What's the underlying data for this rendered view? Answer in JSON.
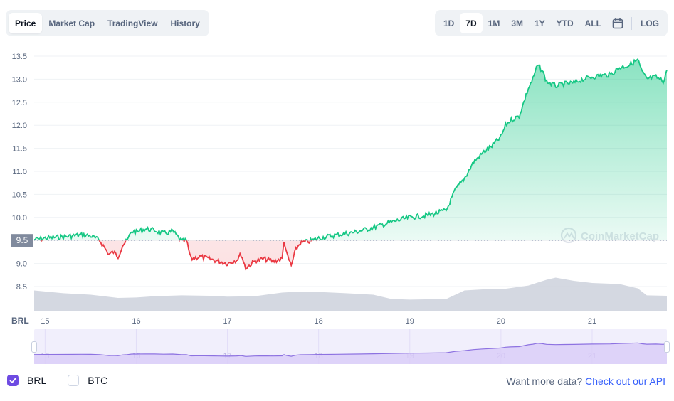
{
  "tabs": [
    {
      "label": "Price",
      "active": true
    },
    {
      "label": "Market Cap",
      "active": false
    },
    {
      "label": "TradingView",
      "active": false
    },
    {
      "label": "History",
      "active": false
    }
  ],
  "ranges": [
    {
      "label": "1D",
      "active": false
    },
    {
      "label": "7D",
      "active": true
    },
    {
      "label": "1M",
      "active": false
    },
    {
      "label": "3M",
      "active": false
    },
    {
      "label": "1Y",
      "active": false
    },
    {
      "label": "YTD",
      "active": false
    },
    {
      "label": "ALL",
      "active": false
    }
  ],
  "log_label": "LOG",
  "currency_label": "BRL",
  "current_price_label": "9.5",
  "watermark": "CoinMarketCap",
  "colors": {
    "up": "#16c784",
    "down": "#ea3943",
    "volume": "#ccd1dc",
    "navigator": "#8d72e1",
    "accent": "#6e4be2",
    "link": "#3861fb"
  },
  "chart_data": {
    "type": "line",
    "currency": "BRL",
    "baseline": 9.5,
    "ylim": [
      8.0,
      13.6
    ],
    "y_ticks": [
      "13.5",
      "13.0",
      "12.5",
      "12.0",
      "11.5",
      "11.0",
      "10.5",
      "10.0",
      "9.5",
      "9.0",
      "8.5"
    ],
    "x_ticks": [
      "15",
      "16",
      "17",
      "18",
      "19",
      "20",
      "21"
    ],
    "price": {
      "x": [
        14.88,
        15.0,
        15.2,
        15.4,
        15.5,
        15.6,
        15.7,
        15.75,
        15.8,
        15.85,
        15.9,
        15.95,
        16.0,
        16.1,
        16.2,
        16.3,
        16.4,
        16.5,
        16.55,
        16.6,
        16.7,
        16.8,
        16.9,
        17.0,
        17.1,
        17.15,
        17.2,
        17.3,
        17.4,
        17.5,
        17.6,
        17.62,
        17.65,
        17.7,
        17.75,
        17.8,
        17.9,
        18.0,
        18.2,
        18.4,
        18.6,
        18.8,
        19.0,
        19.2,
        19.4,
        19.5,
        19.6,
        19.7,
        19.8,
        19.9,
        20.0,
        20.05,
        20.1,
        20.2,
        20.3,
        20.35,
        20.4,
        20.45,
        20.5,
        20.6,
        20.7,
        20.8,
        20.9,
        21.0,
        21.1,
        21.2,
        21.3,
        21.4,
        21.5,
        21.55,
        21.6,
        21.7,
        21.78,
        21.82
      ],
      "y": [
        9.52,
        9.55,
        9.58,
        9.62,
        9.6,
        9.5,
        9.2,
        9.25,
        9.15,
        9.4,
        9.5,
        9.7,
        9.68,
        9.75,
        9.72,
        9.65,
        9.7,
        9.48,
        9.5,
        9.1,
        9.15,
        9.1,
        9.05,
        9.0,
        9.08,
        9.2,
        8.9,
        9.05,
        9.1,
        9.05,
        9.1,
        9.5,
        9.2,
        8.95,
        9.3,
        9.45,
        9.48,
        9.55,
        9.62,
        9.68,
        9.78,
        9.9,
        10.0,
        10.05,
        10.15,
        10.6,
        10.85,
        11.2,
        11.4,
        11.55,
        11.75,
        12.0,
        12.1,
        12.2,
        12.8,
        13.0,
        13.3,
        13.2,
        12.95,
        12.85,
        12.9,
        12.92,
        13.0,
        13.05,
        13.08,
        13.1,
        13.25,
        13.3,
        13.42,
        13.15,
        13.0,
        13.05,
        12.95,
        13.2
      ]
    },
    "volume": {
      "x": [
        14.88,
        15.2,
        15.5,
        15.8,
        16.0,
        16.2,
        16.5,
        16.8,
        17.0,
        17.3,
        17.6,
        17.8,
        18.0,
        18.3,
        18.6,
        18.8,
        19.0,
        19.4,
        19.6,
        19.8,
        20.0,
        20.3,
        20.5,
        20.6,
        20.8,
        21.0,
        21.3,
        21.5,
        21.6,
        21.82
      ],
      "y": [
        0.95,
        0.82,
        0.75,
        0.6,
        0.62,
        0.68,
        0.72,
        0.7,
        0.66,
        0.68,
        0.85,
        0.9,
        0.88,
        0.82,
        0.75,
        0.55,
        0.52,
        0.55,
        0.95,
        1.0,
        1.0,
        1.18,
        1.45,
        1.55,
        1.4,
        1.3,
        1.25,
        1.05,
        0.72,
        0.7
      ]
    }
  },
  "navigator": {
    "x_ticks": [
      "15",
      "16",
      "17",
      "18",
      "19",
      "20",
      "21"
    ]
  },
  "legend": [
    {
      "label": "BRL",
      "checked": true
    },
    {
      "label": "BTC",
      "checked": false
    }
  ],
  "more_data": {
    "text": "Want more data?",
    "link": "Check out our API"
  }
}
